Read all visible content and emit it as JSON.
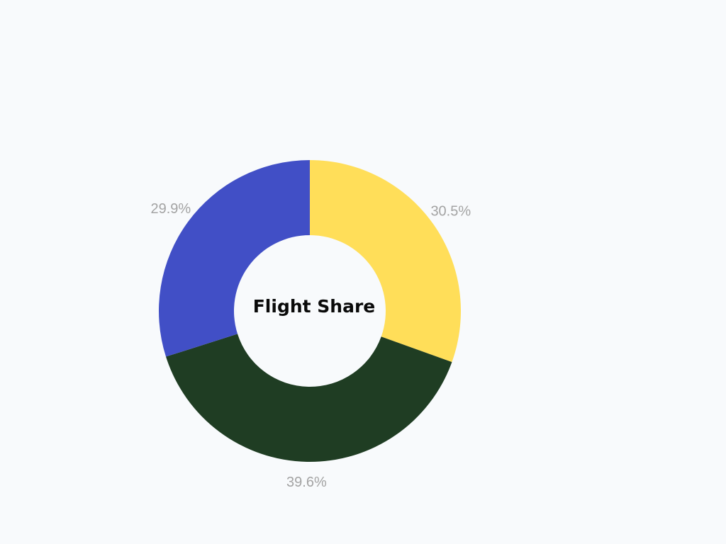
{
  "chart_data": {
    "type": "pie",
    "variant": "donut",
    "title": "Flight Share",
    "slices": [
      {
        "label": "30.5%",
        "value": 30.5,
        "color": "#FFDE59"
      },
      {
        "label": "39.6%",
        "value": 39.6,
        "color": "#1F3D23"
      },
      {
        "label": "29.9%",
        "value": 29.9,
        "color": "#414FC6"
      }
    ],
    "legend": "none",
    "label_color": "#a3a3a3",
    "background": "#f8fafc"
  }
}
